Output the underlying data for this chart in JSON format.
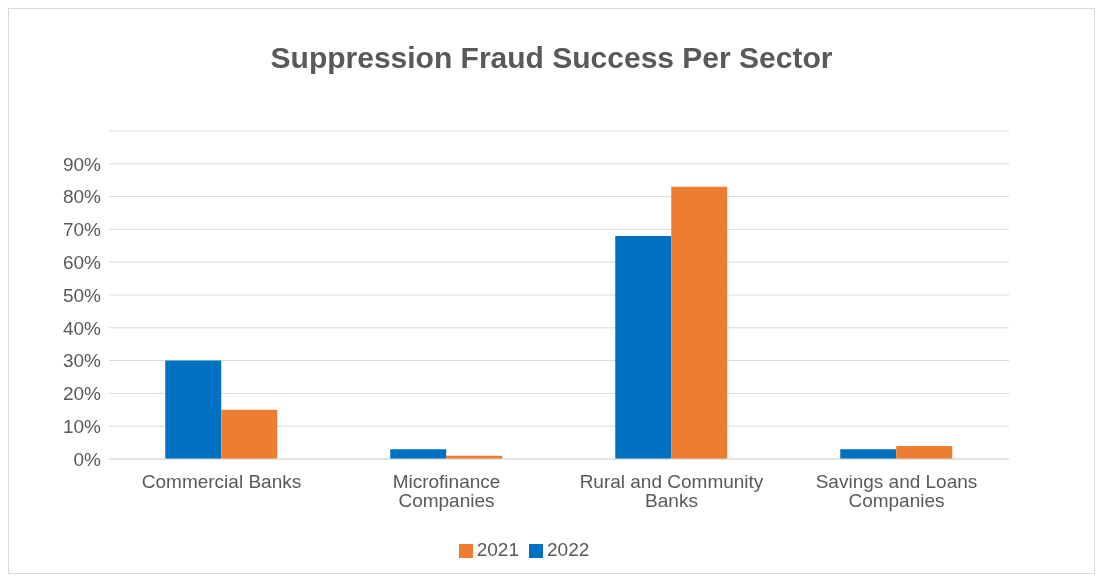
{
  "chart_data": {
    "type": "bar",
    "title": "Suppression Fraud Success Per Sector",
    "categories": [
      "Commercial Banks",
      "Microfinance Companies",
      "Rural and Community Banks",
      "Savings and Loans Companies"
    ],
    "series": [
      {
        "name": "2022",
        "color": "#0070c0",
        "values": [
          30,
          3,
          68,
          3
        ]
      },
      {
        "name": "2021",
        "color": "#ed7d31",
        "values": [
          15,
          1,
          83,
          4
        ]
      }
    ],
    "ylim": [
      0,
      100
    ],
    "yticks": [
      {
        "value": 0,
        "label": "0%"
      },
      {
        "value": 10,
        "label": "10%"
      },
      {
        "value": 20,
        "label": "20%"
      },
      {
        "value": 30,
        "label": "30%"
      },
      {
        "value": 40,
        "label": "40%"
      },
      {
        "value": 50,
        "label": "50%"
      },
      {
        "value": 60,
        "label": "60%"
      },
      {
        "value": 70,
        "label": "70%"
      },
      {
        "value": 80,
        "label": "80%"
      },
      {
        "value": 90,
        "label": "90%"
      },
      {
        "value": 100,
        "label": null
      }
    ],
    "grid": "y",
    "legend": "bottom"
  }
}
